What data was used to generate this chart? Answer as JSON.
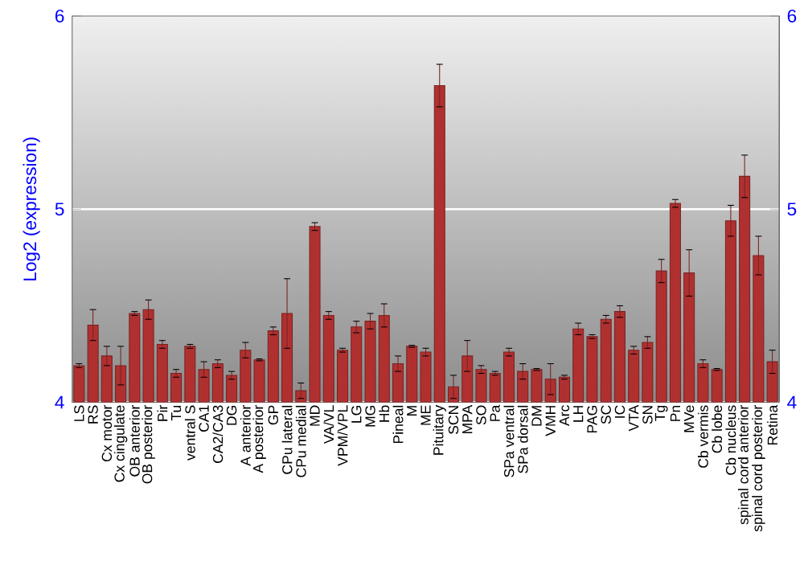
{
  "chart_data": {
    "type": "bar",
    "ylabel": "Log2 (expression)",
    "categories": [
      "LS",
      "RS",
      "Cx motor",
      "Cx cingulate",
      "OB anterior",
      "OB posterior",
      "Pir",
      "Tu",
      "ventral S",
      "CA1",
      "CA2/CA3",
      "DG",
      "A anterior",
      "A posterior",
      "GP",
      "CPu lateral",
      "CPu medial",
      "MD",
      "VA/VL",
      "VPM/VPL",
      "LG",
      "MG",
      "Hb",
      "Pineal",
      "M",
      "ME",
      "Pituitary",
      "SCN",
      "MPA",
      "SO",
      "Pa",
      "SPa ventral",
      "SPa dorsal",
      "DM",
      "VMH",
      "Arc",
      "LH",
      "PAG",
      "SC",
      "IC",
      "VTA",
      "SN",
      "Tg",
      "Pn",
      "MVe",
      "Cb vermis",
      "Cb lobe",
      "Cb nucleus",
      "spinal cord anterior",
      "spinal cord posterior",
      "Retina"
    ],
    "values": [
      4.19,
      4.4,
      4.24,
      4.19,
      4.46,
      4.48,
      4.3,
      4.15,
      4.29,
      4.17,
      4.2,
      4.14,
      4.27,
      4.22,
      4.37,
      4.46,
      4.06,
      4.91,
      4.45,
      4.27,
      4.39,
      4.42,
      4.45,
      4.2,
      4.29,
      4.26,
      5.64,
      4.08,
      4.24,
      4.17,
      4.15,
      4.26,
      4.16,
      4.17,
      4.12,
      4.13,
      4.38,
      4.34,
      4.43,
      4.47,
      4.27,
      4.31,
      4.68,
      5.03,
      4.67,
      4.2,
      4.17,
      4.94,
      5.17,
      4.76,
      4.21
    ],
    "errors": [
      0.01,
      0.08,
      0.05,
      0.1,
      0.01,
      0.05,
      0.02,
      0.02,
      0.01,
      0.04,
      0.02,
      0.02,
      0.04,
      0.005,
      0.02,
      0.18,
      0.04,
      0.02,
      0.02,
      0.01,
      0.03,
      0.04,
      0.06,
      0.04,
      0.005,
      0.02,
      0.11,
      0.06,
      0.08,
      0.02,
      0.01,
      0.02,
      0.04,
      0.005,
      0.08,
      0.01,
      0.03,
      0.01,
      0.02,
      0.03,
      0.02,
      0.03,
      0.06,
      0.02,
      0.12,
      0.02,
      0.005,
      0.08,
      0.11,
      0.1,
      0.06
    ],
    "color": "#b03030",
    "ylim": [
      4,
      6
    ],
    "yticks": [
      4,
      5,
      6
    ],
    "y2lim": [
      4,
      6
    ],
    "y2ticks": [
      4,
      5,
      6
    ],
    "grid": "y"
  }
}
